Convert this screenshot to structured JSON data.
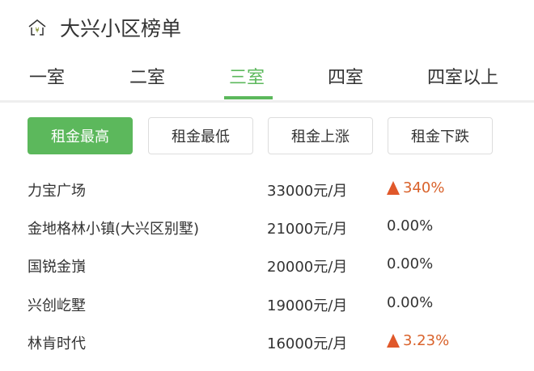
{
  "header": {
    "title": "大兴小区榜单",
    "icon": "house-yuan-icon"
  },
  "tabs": [
    {
      "label": "一室"
    },
    {
      "label": "二室"
    },
    {
      "label": "三室",
      "active": true
    },
    {
      "label": "四室"
    },
    {
      "label": "四室以上"
    }
  ],
  "sort_buttons": [
    {
      "label": "租金最高",
      "active": true
    },
    {
      "label": "租金最低"
    },
    {
      "label": "租金上涨"
    },
    {
      "label": "租金下跌"
    }
  ],
  "rows": [
    {
      "name": "力宝广场",
      "rent": "33000元/月",
      "change": "340%",
      "trend": "up"
    },
    {
      "name": "金地格林小镇(大兴区别墅)",
      "rent": "21000元/月",
      "change": "0.00%",
      "trend": "flat"
    },
    {
      "name": "国锐金嵿",
      "rent": "20000元/月",
      "change": "0.00%",
      "trend": "flat"
    },
    {
      "name": "兴创屹墅",
      "rent": "19000元/月",
      "change": "0.00%",
      "trend": "flat"
    },
    {
      "name": "林肯时代",
      "rent": "16000元/月",
      "change": "3.23%",
      "trend": "up"
    }
  ],
  "colors": {
    "accent": "#5cb85c",
    "up": "#d9622b"
  }
}
